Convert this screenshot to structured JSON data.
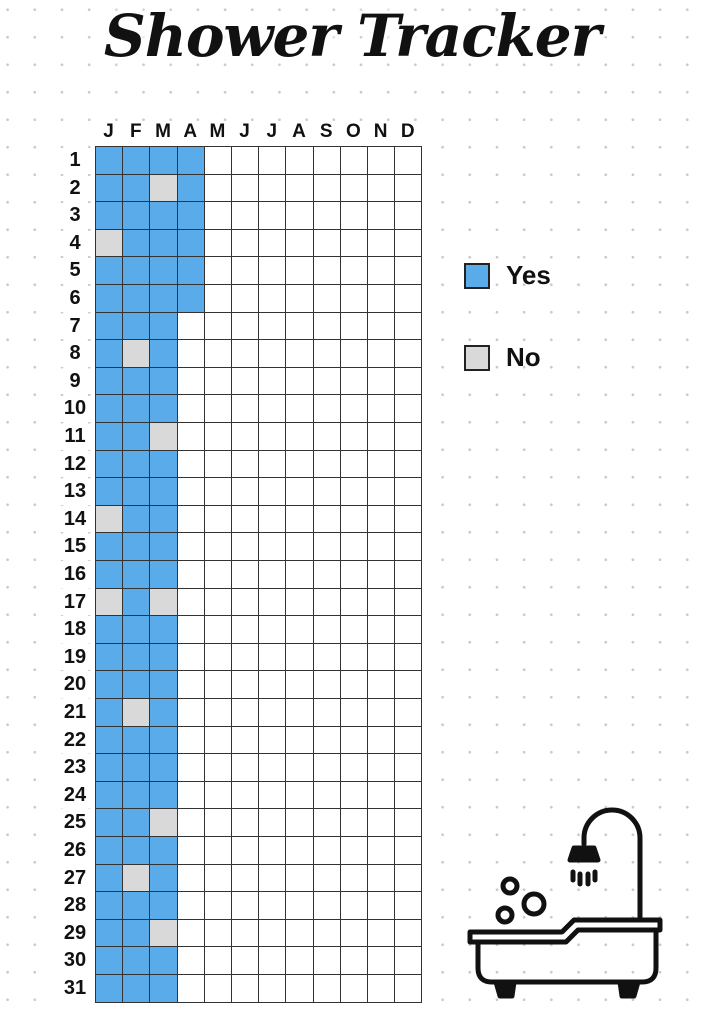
{
  "title": "Shower Tracker",
  "months": [
    "J",
    "F",
    "M",
    "A",
    "M",
    "J",
    "J",
    "A",
    "S",
    "O",
    "N",
    "D"
  ],
  "days": [
    "1",
    "2",
    "3",
    "4",
    "5",
    "6",
    "7",
    "8",
    "9",
    "10",
    "11",
    "12",
    "13",
    "14",
    "15",
    "16",
    "17",
    "18",
    "19",
    "20",
    "21",
    "22",
    "23",
    "24",
    "25",
    "26",
    "27",
    "28",
    "29",
    "30",
    "31"
  ],
  "colors": {
    "yes": "#5aabea",
    "no": "#d9d9d9",
    "empty": "#ffffff"
  },
  "tracker": {
    "J": "YYYNYYYYYYYYYNYYNYYYYYYYYYYYYYY",
    "F": "YYYYYYYNYYYYYYYYYYYYNYYYYYNYYYY",
    "M": "YNYYYYYYYYNYYYYYNYYYYYYYNYYYNYY",
    "A": "YYYYYY"
  },
  "legend": {
    "yes": {
      "label": "Yes",
      "color": "#5aabea"
    },
    "no": {
      "label": "No",
      "color": "#d9d9d9"
    }
  },
  "illustration": "bathtub-shower-icon"
}
